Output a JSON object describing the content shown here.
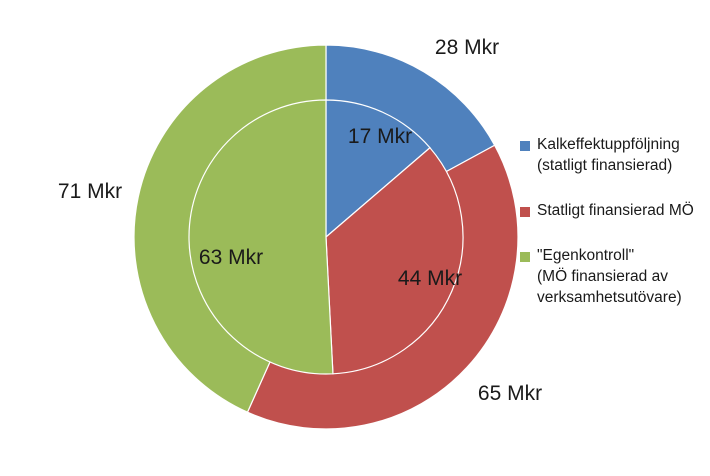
{
  "chart_data": {
    "type": "pie",
    "subtype": "nested-donut",
    "title": "",
    "colors": [
      "#4f81bd",
      "#c0504d",
      "#9bbb59"
    ],
    "legend_position": "right",
    "legend": [
      {
        "lines": [
          "Kalkeffektuppföljning",
          "(statligt finansierad)"
        ]
      },
      {
        "lines": [
          "Statligt finansierad MÖ"
        ]
      },
      {
        "lines": [
          "\"Egenkontroll\"",
          "(MÖ finansierad av",
          "verksamhetsutövare)"
        ]
      }
    ],
    "rings": [
      {
        "ring": "outer",
        "values": [
          28,
          65,
          71
        ],
        "labels": [
          "28 Mkr",
          "65 Mkr",
          "71 Mkr"
        ]
      },
      {
        "ring": "inner",
        "values": [
          17,
          44,
          63
        ],
        "labels": [
          "17 Mkr",
          "44 Mkr",
          "63 Mkr"
        ]
      }
    ]
  }
}
